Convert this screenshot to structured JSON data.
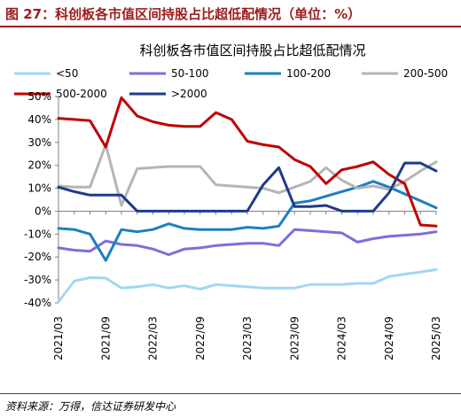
{
  "figure": {
    "title": "图 27：科创板各市值区间持股占比超低配情况（单位：%）",
    "source": "资料来源：万得，信达证券研发中心",
    "accent_color": "#9c1c1c"
  },
  "chart_data": {
    "type": "line",
    "title": "科创板各市值区间持股占比超低配情况",
    "xlabel": "",
    "ylabel": "",
    "ylim": [
      -40,
      50
    ],
    "yticks": [
      "50%",
      "40%",
      "30%",
      "20%",
      "10%",
      "0%",
      "-10%",
      "-20%",
      "-30%",
      "-40%"
    ],
    "xticks": [
      "2021/03",
      "2021/09",
      "2022/03",
      "2022/09",
      "2023/03",
      "2023/09",
      "2024/03",
      "2024/09",
      "2025/03"
    ],
    "grid": false,
    "legend_position": "top",
    "x": [
      "2021/03",
      "2021/05",
      "2021/07",
      "2021/09",
      "2021/11",
      "2022/01",
      "2022/03",
      "2022/05",
      "2022/07",
      "2022/09",
      "2022/11",
      "2023/01",
      "2023/03",
      "2023/05",
      "2023/07",
      "2023/09",
      "2023/11",
      "2024/01",
      "2024/03",
      "2024/05",
      "2024/07",
      "2024/09",
      "2024/11",
      "2025/01",
      "2025/03"
    ],
    "series": [
      {
        "name": "<50",
        "color": "#9fd8f2",
        "values": [
          -39.5,
          -30.5,
          -29,
          -29.2,
          -33.5,
          -33,
          -32,
          -33.5,
          -32.5,
          -34,
          -32,
          -32.5,
          -33,
          -33.5,
          -33.5,
          -33.5,
          -32,
          -32,
          -32,
          -31.5,
          -31.5,
          -28.5,
          -27.5,
          -26.5,
          -25.5
        ]
      },
      {
        "name": "50-100",
        "color": "#7b6fdc",
        "values": [
          -16,
          -17,
          -17.5,
          -13,
          -14.5,
          -15,
          -16.5,
          -19,
          -16.5,
          -16,
          -15,
          -14.5,
          -14,
          -14,
          -15,
          -8,
          -8.5,
          -9,
          -9.5,
          -13.5,
          -12,
          -11,
          -10.5,
          -10,
          -9
        ]
      },
      {
        "name": "100-200",
        "color": "#1c7fbf",
        "values": [
          -7.5,
          -8,
          -10,
          -21.5,
          -8,
          -9,
          -8,
          -5.5,
          -7.5,
          -8,
          -8,
          -8,
          -7,
          -7.5,
          -6.5,
          3.5,
          4.5,
          6.5,
          8.5,
          10.5,
          13,
          10.5,
          7.5,
          4.5,
          1.5
        ]
      },
      {
        "name": "200-500",
        "color": "#b5b5b5",
        "values": [
          11,
          10.5,
          10.5,
          29,
          2.5,
          18.5,
          19,
          19.5,
          19.5,
          19.5,
          11.5,
          11,
          10.5,
          10,
          8,
          10.5,
          13,
          19,
          13.5,
          10,
          11,
          9.5,
          13,
          17.5,
          21.5
        ]
      },
      {
        "name": "500-2000",
        "color": "#c00000",
        "values": [
          40.5,
          40,
          39.5,
          28,
          49.5,
          41.5,
          39,
          37.5,
          37,
          37,
          43,
          40,
          30.5,
          29,
          28,
          22.5,
          19.5,
          12,
          18,
          19.5,
          21.5,
          16,
          12,
          -6,
          -6.5
        ]
      },
      {
        "name": ">2000",
        "color": "#1f3a8a",
        "values": [
          10.5,
          8.5,
          7,
          7,
          7,
          0,
          0,
          0,
          0,
          0,
          0,
          0,
          0,
          11.5,
          19,
          2,
          2,
          2.5,
          0,
          0,
          0,
          8,
          21,
          21,
          17.5
        ]
      }
    ]
  }
}
